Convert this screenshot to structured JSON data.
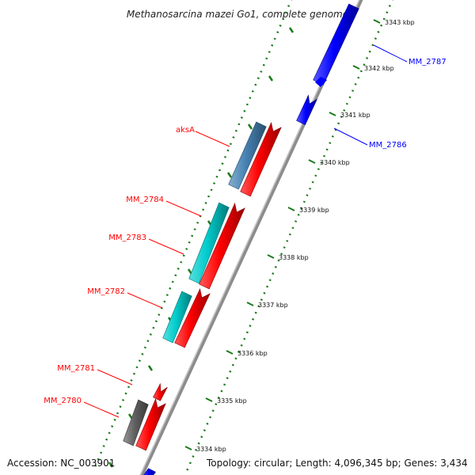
{
  "title": "Methanosarcina mazei Go1, complete genome",
  "accession": "Accession: NC_003901",
  "summary": "Topology: circular; Length: 4,096,345 bp; Genes: 3,434",
  "colors": {
    "backbone": "#8c8c8c",
    "ruler_dots": "#1a7a1a",
    "forward_cds": "#ff0000",
    "reverse_cds": "#0000ff",
    "steelblue_gene": "#4682b4",
    "cyan_gene": "#00cccc",
    "gray_gene": "#606060",
    "forward_label": "#ff0000",
    "reverse_label": "#0000ff"
  },
  "ticks": [
    "3343 kbp",
    "3342 kbp",
    "3341 kbp",
    "3340 kbp",
    "3339 kbp",
    "3338 kbp",
    "3337 kbp",
    "3336 kbp",
    "3335 kbp",
    "3334 kbp"
  ],
  "gene_labels": [
    {
      "text": "MM_2787",
      "strand": "reverse"
    },
    {
      "text": "MM_2786",
      "strand": "reverse"
    },
    {
      "text": "aksA",
      "strand": "forward"
    },
    {
      "text": "MM_2784",
      "strand": "forward"
    },
    {
      "text": "MM_2783",
      "strand": "forward"
    },
    {
      "text": "MM_2782",
      "strand": "forward"
    },
    {
      "text": "MM_2781",
      "strand": "forward"
    },
    {
      "text": "MM_2780",
      "strand": "forward"
    }
  ]
}
